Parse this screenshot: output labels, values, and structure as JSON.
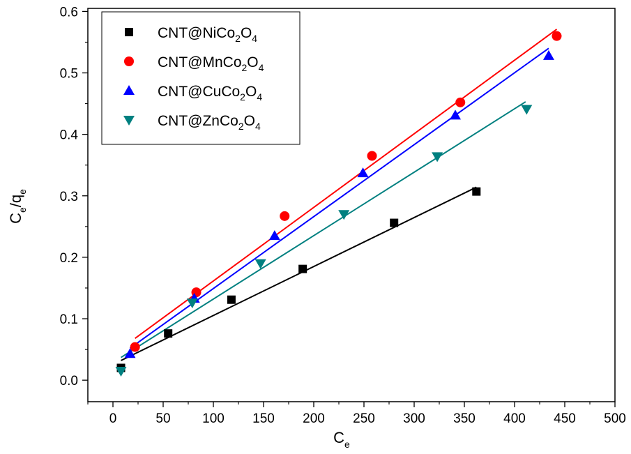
{
  "chart_data": {
    "type": "scatter",
    "xlabel": {
      "main": "C",
      "sub": "e"
    },
    "ylabel": {
      "main1": "C",
      "sub1": "e",
      "slash": "/q",
      "sub2": "e"
    },
    "xlim": [
      -25,
      500
    ],
    "ylim": [
      -0.035,
      0.605
    ],
    "x_ticks": [
      0,
      50,
      100,
      150,
      200,
      250,
      300,
      350,
      400,
      450,
      500
    ],
    "x_tick_labels": [
      "0",
      "50",
      "100",
      "150",
      "200",
      "250",
      "300",
      "350",
      "400",
      "450",
      "500"
    ],
    "y_ticks": [
      0.0,
      0.1,
      0.2,
      0.3,
      0.4,
      0.5,
      0.6
    ],
    "y_tick_labels": [
      "0.0",
      "0.1",
      "0.2",
      "0.3",
      "0.4",
      "0.5",
      "0.6"
    ],
    "grid": false,
    "legend_position": "top-left",
    "series": [
      {
        "name_parts": [
          "CNT@NiCo",
          "2",
          "O",
          "4"
        ],
        "color": "#000000",
        "marker": "square",
        "x": [
          8,
          55,
          118,
          189,
          280,
          362
        ],
        "y": [
          0.02,
          0.076,
          0.131,
          0.181,
          0.256,
          0.307
        ],
        "fit": {
          "x": [
            8,
            362
          ],
          "y": [
            0.032,
            0.314
          ]
        }
      },
      {
        "name_parts": [
          "CNT@MnCo",
          "2",
          "O",
          "4"
        ],
        "color": "#ff0000",
        "marker": "circle",
        "x": [
          22,
          83,
          171,
          258,
          346,
          442
        ],
        "y": [
          0.054,
          0.143,
          0.267,
          0.365,
          0.452,
          0.56
        ],
        "fit": {
          "x": [
            22,
            442
          ],
          "y": [
            0.068,
            0.571
          ]
        }
      },
      {
        "name_parts": [
          "CNT@CuCo",
          "2",
          "O",
          "4"
        ],
        "color": "#0000ff",
        "marker": "triangle-up",
        "x": [
          17,
          81,
          161,
          249,
          341,
          434
        ],
        "y": [
          0.043,
          0.133,
          0.235,
          0.337,
          0.431,
          0.528
        ],
        "fit": {
          "x": [
            17,
            434
          ],
          "y": [
            0.052,
            0.54
          ]
        }
      },
      {
        "name_parts": [
          "CNT@ZnCo",
          "2",
          "O",
          "4"
        ],
        "color": "#008080",
        "marker": "triangle-down",
        "x": [
          8,
          79,
          147,
          230,
          323,
          412
        ],
        "y": [
          0.015,
          0.126,
          0.19,
          0.27,
          0.364,
          0.441
        ],
        "fit": {
          "x": [
            8,
            411
          ],
          "y": [
            0.037,
            0.453
          ]
        }
      }
    ]
  }
}
